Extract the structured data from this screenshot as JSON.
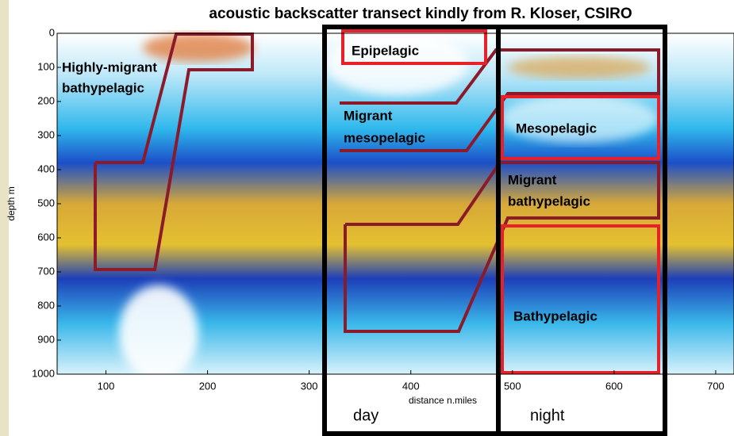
{
  "title": "acoustic backscatter transect kindly from R. Kloser, CSIRO",
  "axes": {
    "xlabel": "distance n.miles",
    "ylabel": "depth m",
    "xlim": [
      52,
      718
    ],
    "xticks": [
      100,
      200,
      300,
      400,
      500,
      600,
      700
    ],
    "ylim": [
      0,
      1000
    ],
    "yticks": [
      0,
      100,
      200,
      300,
      400,
      500,
      600,
      700,
      800,
      900,
      1000
    ]
  },
  "annotations": {
    "highly_migrant": [
      "Highly-migrant",
      "bathypelagic"
    ],
    "epipelagic": "Epipelagic",
    "migrant_meso": [
      "Migrant",
      "mesopelagic"
    ],
    "mesopelagic": "Mesopelagic",
    "migrant_bathy": [
      "Migrant",
      "bathypelagic"
    ],
    "bathypelagic": "Bathypelagic",
    "day": "day",
    "night": "night"
  }
}
